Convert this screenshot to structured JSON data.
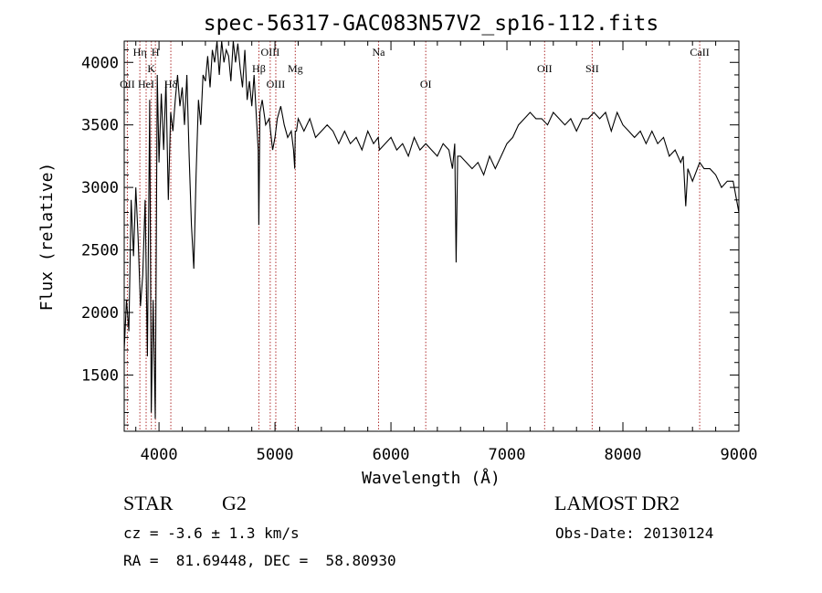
{
  "chart_data": {
    "type": "line",
    "title": "spec-56317-GAC083N57V2_sp16-112.fits",
    "xlabel": "Wavelength (Å)",
    "ylabel": "Flux (relative)",
    "xlim": [
      3700,
      9000
    ],
    "ylim": [
      1050,
      4170
    ],
    "x_ticks": [
      4000,
      5000,
      6000,
      7000,
      8000,
      9000
    ],
    "y_ticks": [
      1500,
      2000,
      2500,
      3000,
      3500,
      4000
    ],
    "grid": false,
    "line_color": "#000000",
    "marker_color": "#b03030",
    "lines": [
      {
        "label": "OII",
        "x": 3727,
        "row": 3
      },
      {
        "label": "Hη",
        "x": 3835,
        "row": 1
      },
      {
        "label": "HeI",
        "x": 3889,
        "row": 3
      },
      {
        "label": "K",
        "x": 3934,
        "row": 2
      },
      {
        "label": "H",
        "x": 3969,
        "row": 1
      },
      {
        "label": "Hδ",
        "x": 4102,
        "row": 3
      },
      {
        "label": "Hβ",
        "x": 4861,
        "row": 2
      },
      {
        "label": "OIII",
        "x": 4959,
        "row": 1
      },
      {
        "label": "OIII",
        "x": 5007,
        "row": 3
      },
      {
        "label": "Mg",
        "x": 5175,
        "row": 2
      },
      {
        "label": "Na",
        "x": 5893,
        "row": 1
      },
      {
        "label": "OI",
        "x": 6300,
        "row": 3
      },
      {
        "label": "OII",
        "x": 7325,
        "row": 2
      },
      {
        "label": "SII",
        "x": 7735,
        "row": 2
      },
      {
        "label": "CaII",
        "x": 8662,
        "row": 1
      }
    ],
    "series": [
      {
        "x": [
          3700,
          3720,
          3740,
          3760,
          3780,
          3800,
          3820,
          3840,
          3860,
          3880,
          3900,
          3920,
          3933,
          3950,
          3968,
          3985,
          4000,
          4020,
          4040,
          4060,
          4080,
          4101,
          4120,
          4140,
          4160,
          4180,
          4200,
          4220,
          4240,
          4260,
          4280,
          4300,
          4320,
          4340,
          4360,
          4380,
          4400,
          4420,
          4440,
          4460,
          4480,
          4500,
          4520,
          4540,
          4560,
          4580,
          4600,
          4620,
          4640,
          4660,
          4680,
          4700,
          4720,
          4740,
          4760,
          4780,
          4800,
          4820,
          4840,
          4855,
          4861,
          4870,
          4890,
          4920,
          4950,
          4980,
          5000,
          5020,
          5050,
          5080,
          5110,
          5140,
          5160,
          5170,
          5175,
          5185,
          5200,
          5250,
          5300,
          5350,
          5400,
          5450,
          5500,
          5550,
          5600,
          5650,
          5700,
          5750,
          5800,
          5850,
          5890,
          5900,
          5950,
          6000,
          6050,
          6100,
          6150,
          6200,
          6250,
          6300,
          6350,
          6400,
          6450,
          6500,
          6530,
          6550,
          6562,
          6575,
          6600,
          6650,
          6700,
          6750,
          6800,
          6850,
          6900,
          6950,
          7000,
          7050,
          7100,
          7150,
          7200,
          7250,
          7300,
          7350,
          7400,
          7450,
          7500,
          7550,
          7600,
          7650,
          7700,
          7750,
          7800,
          7850,
          7900,
          7950,
          8000,
          8050,
          8100,
          8150,
          8200,
          8250,
          8300,
          8350,
          8400,
          8450,
          8498,
          8520,
          8542,
          8560,
          8600,
          8662,
          8700,
          8750,
          8800,
          8850,
          8900,
          8950,
          9000
        ],
        "y": [
          1700,
          2100,
          1850,
          2900,
          2450,
          3000,
          2600,
          2050,
          2300,
          2900,
          1650,
          3700,
          1200,
          2100,
          1150,
          3900,
          3200,
          3750,
          3300,
          3850,
          2900,
          3600,
          3450,
          3700,
          3900,
          3650,
          3800,
          3500,
          3900,
          3250,
          2700,
          2350,
          3100,
          3700,
          3500,
          3900,
          3850,
          4050,
          3800,
          4100,
          4000,
          4170,
          3900,
          4170,
          4000,
          4100,
          4050,
          3850,
          4170,
          4000,
          4150,
          3950,
          3800,
          4100,
          3700,
          3850,
          3650,
          3900,
          3550,
          3300,
          2700,
          3600,
          3700,
          3500,
          3550,
          3300,
          3400,
          3550,
          3650,
          3500,
          3400,
          3450,
          3300,
          3150,
          3450,
          3450,
          3550,
          3450,
          3550,
          3400,
          3450,
          3500,
          3450,
          3350,
          3450,
          3350,
          3400,
          3300,
          3450,
          3350,
          3400,
          3300,
          3350,
          3400,
          3300,
          3350,
          3250,
          3400,
          3300,
          3350,
          3300,
          3250,
          3350,
          3300,
          3150,
          3350,
          2400,
          3250,
          3250,
          3200,
          3150,
          3200,
          3100,
          3250,
          3150,
          3250,
          3350,
          3400,
          3500,
          3550,
          3600,
          3550,
          3550,
          3500,
          3600,
          3550,
          3500,
          3550,
          3450,
          3550,
          3550,
          3600,
          3550,
          3600,
          3450,
          3600,
          3500,
          3450,
          3400,
          3450,
          3350,
          3450,
          3350,
          3400,
          3250,
          3300,
          3200,
          3250,
          2850,
          3150,
          3050,
          3200,
          3150,
          3150,
          3100,
          3000,
          3050,
          3050,
          2800
        ]
      }
    ]
  },
  "info": {
    "object_type": "STAR",
    "subclass": "G2",
    "survey": "LAMOST DR2",
    "cz": "cz = -3.6 ± 1.3 km/s",
    "obs_date": "Obs-Date: 20130124",
    "coords": "RA =  81.69448, DEC =  58.80930"
  }
}
